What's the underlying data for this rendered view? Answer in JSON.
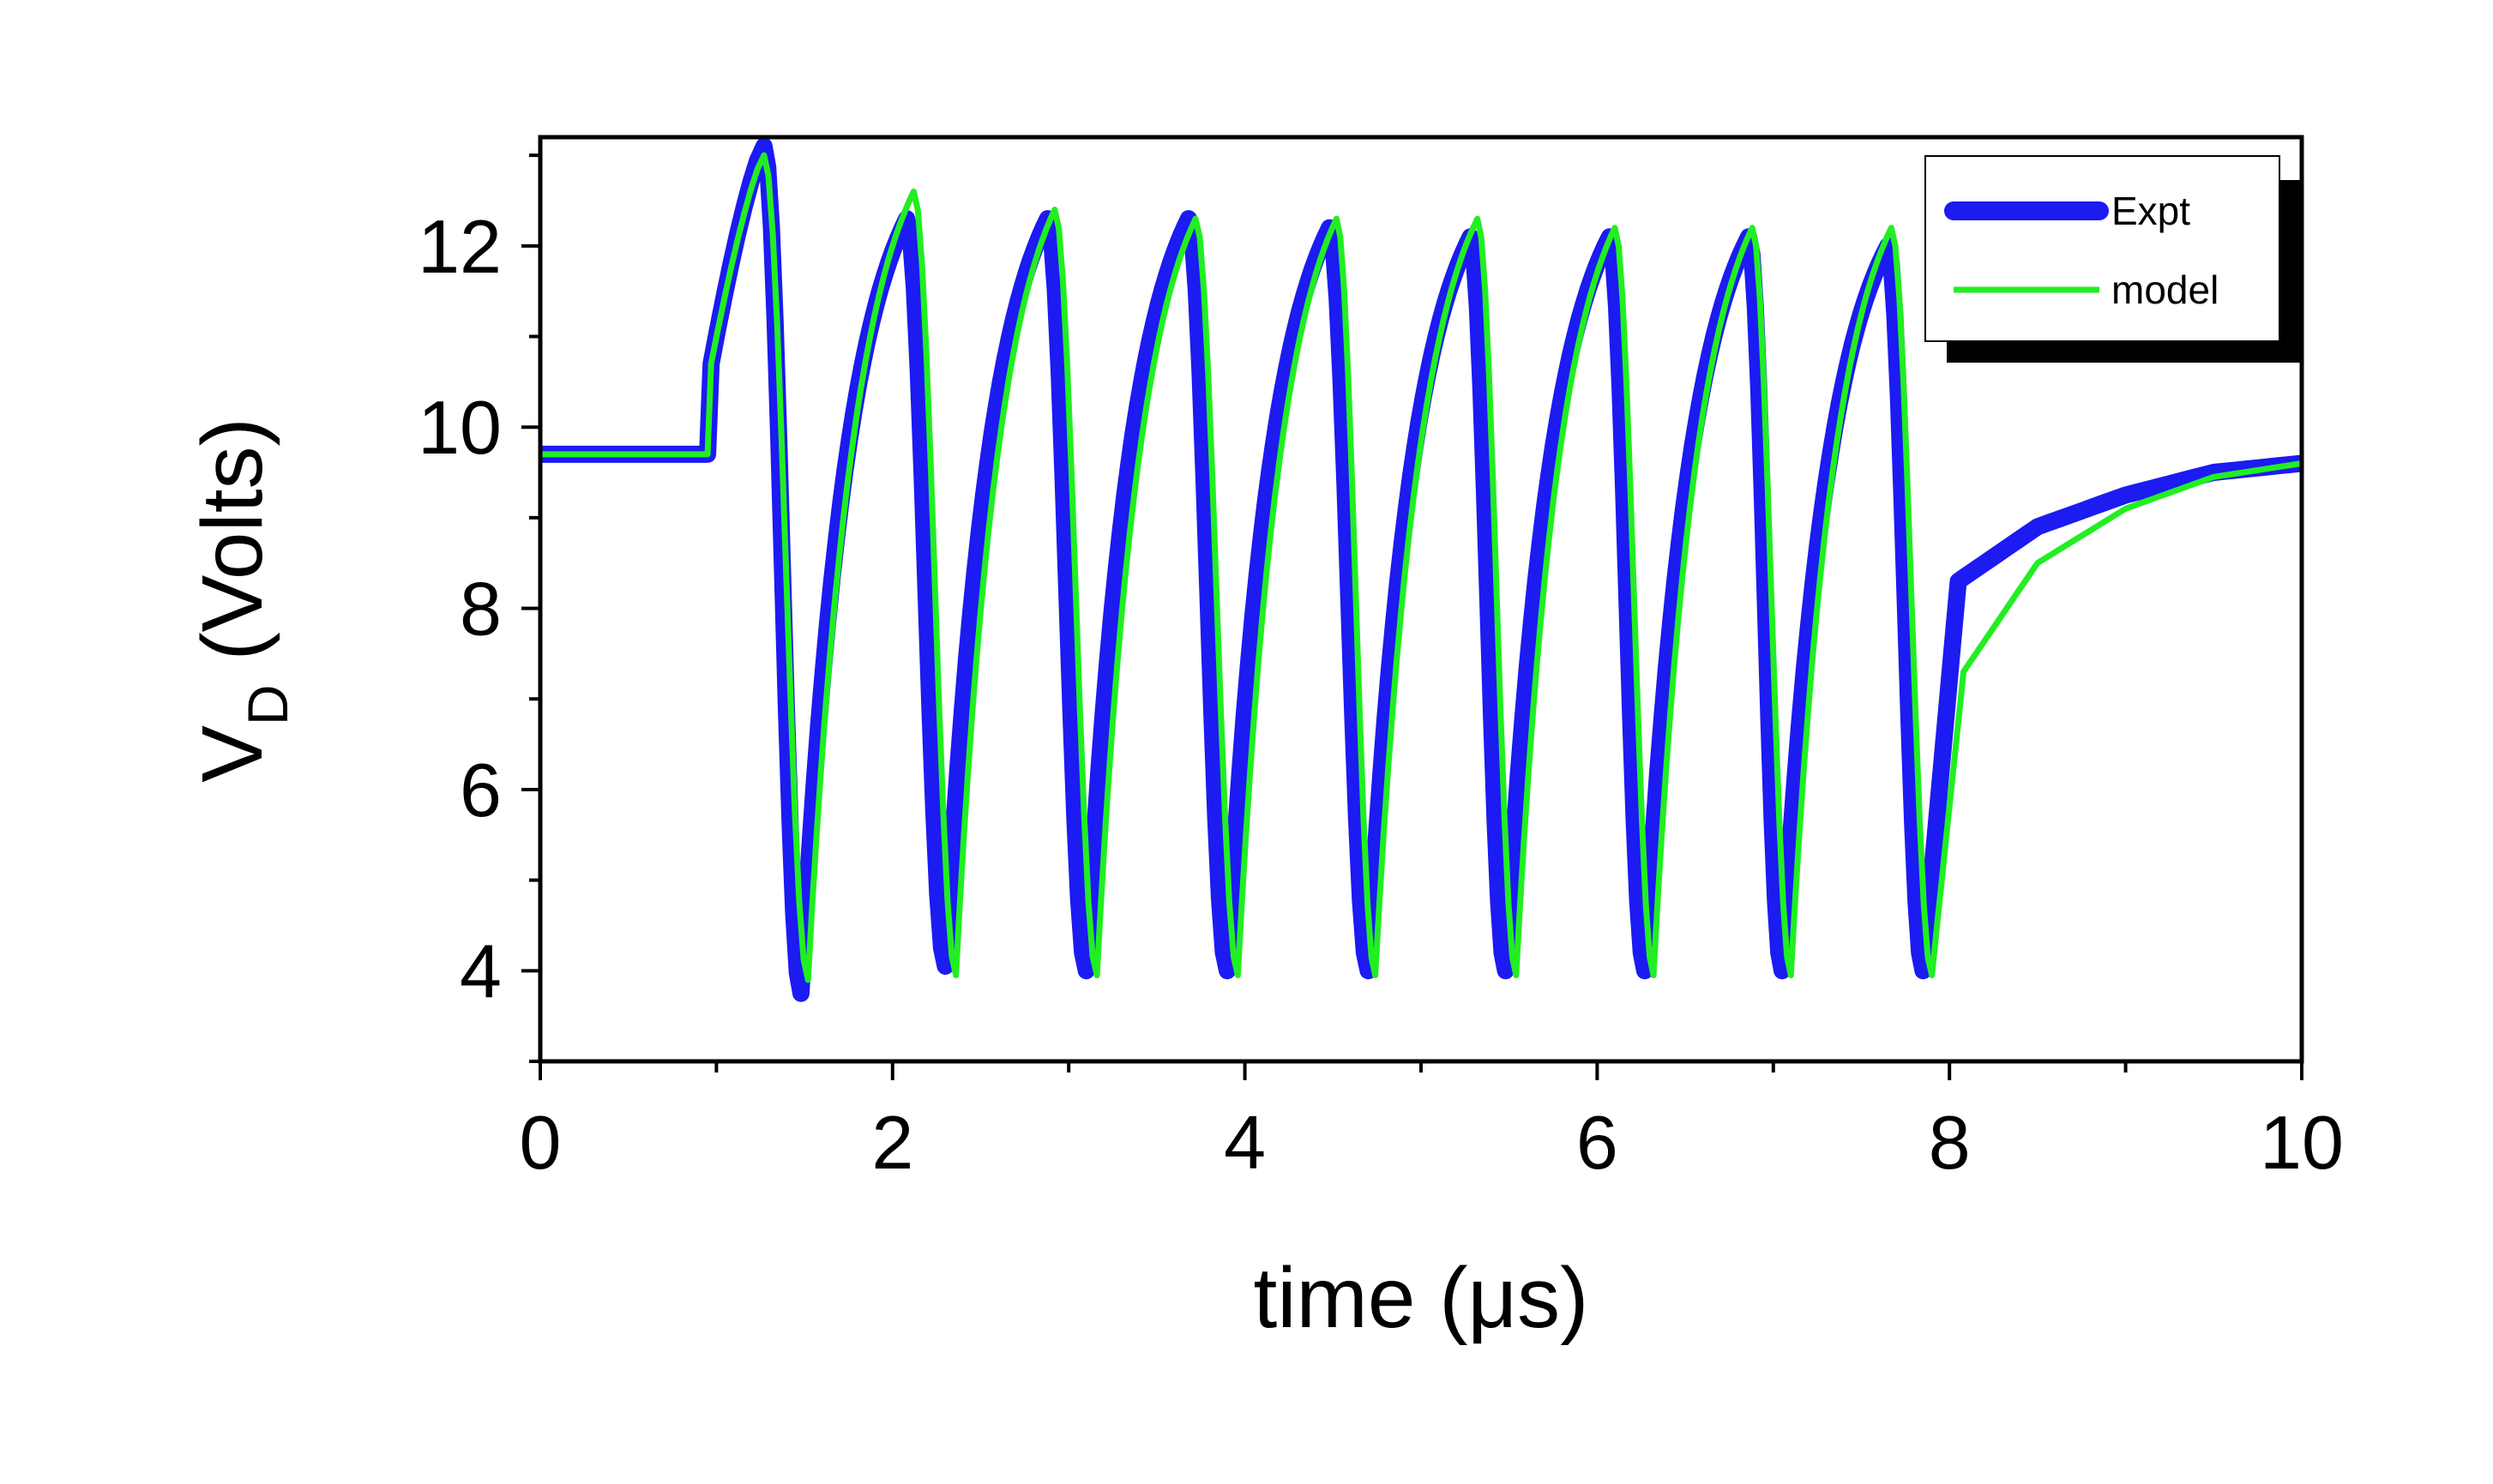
{
  "chart_data": {
    "type": "line",
    "title": "",
    "xlabel": "time (μs)",
    "ylabel_main": "V",
    "ylabel_subscript": "D",
    "ylabel_suffix": " (Volts)",
    "xlim": [
      0,
      10
    ],
    "ylim": [
      3,
      13.2
    ],
    "x_ticks": [
      0,
      2,
      4,
      6,
      8,
      10
    ],
    "x_ticks_minor": [
      1,
      3,
      5,
      7,
      9
    ],
    "y_ticks": [
      4,
      6,
      8,
      10,
      12
    ],
    "y_ticks_minor": [
      3,
      5,
      7,
      9,
      11,
      13
    ],
    "grid": false,
    "legend_position": "top-right",
    "baseline_V": 9.7,
    "pulse_start_us": 0.95,
    "pulse_end_us": 8.05,
    "series": [
      {
        "name": "Expt",
        "color": "#1b1bf2",
        "peaks": [
          {
            "t": 1.27,
            "v": 13.1
          },
          {
            "t": 2.08,
            "v": 12.3
          },
          {
            "t": 2.88,
            "v": 12.3
          },
          {
            "t": 3.68,
            "v": 12.3
          },
          {
            "t": 4.48,
            "v": 12.2
          },
          {
            "t": 5.28,
            "v": 12.1
          },
          {
            "t": 6.07,
            "v": 12.1
          },
          {
            "t": 6.86,
            "v": 12.1
          },
          {
            "t": 7.65,
            "v": 12.0
          }
        ],
        "troughs": [
          {
            "t": 1.48,
            "v": 3.75
          },
          {
            "t": 2.3,
            "v": 4.05
          },
          {
            "t": 3.1,
            "v": 4.0
          },
          {
            "t": 3.9,
            "v": 4.0
          },
          {
            "t": 4.7,
            "v": 4.0
          },
          {
            "t": 5.48,
            "v": 4.0
          },
          {
            "t": 6.27,
            "v": 4.0
          },
          {
            "t": 7.05,
            "v": 4.0
          },
          {
            "t": 7.85,
            "v": 4.0
          }
        ],
        "recovery": [
          {
            "t": 8.05,
            "v": 8.3
          },
          {
            "t": 8.5,
            "v": 8.9
          },
          {
            "t": 9.0,
            "v": 9.25
          },
          {
            "t": 9.5,
            "v": 9.5
          },
          {
            "t": 10.0,
            "v": 9.6
          }
        ]
      },
      {
        "name": "model",
        "color": "#22ee22",
        "peaks": [
          {
            "t": 1.27,
            "v": 13.0
          },
          {
            "t": 2.12,
            "v": 12.6
          },
          {
            "t": 2.92,
            "v": 12.4
          },
          {
            "t": 3.72,
            "v": 12.3
          },
          {
            "t": 4.52,
            "v": 12.3
          },
          {
            "t": 5.32,
            "v": 12.3
          },
          {
            "t": 6.1,
            "v": 12.2
          },
          {
            "t": 6.88,
            "v": 12.2
          },
          {
            "t": 7.67,
            "v": 12.2
          }
        ],
        "troughs": [
          {
            "t": 1.52,
            "v": 3.9
          },
          {
            "t": 2.36,
            "v": 3.95
          },
          {
            "t": 3.16,
            "v": 3.95
          },
          {
            "t": 3.96,
            "v": 3.95
          },
          {
            "t": 4.74,
            "v": 3.95
          },
          {
            "t": 5.54,
            "v": 3.95
          },
          {
            "t": 6.32,
            "v": 3.95
          },
          {
            "t": 7.1,
            "v": 3.95
          },
          {
            "t": 7.9,
            "v": 3.95
          }
        ],
        "recovery": [
          {
            "t": 8.08,
            "v": 7.3
          },
          {
            "t": 8.5,
            "v": 8.5
          },
          {
            "t": 9.0,
            "v": 9.1
          },
          {
            "t": 9.5,
            "v": 9.45
          },
          {
            "t": 10.0,
            "v": 9.6
          }
        ]
      }
    ]
  }
}
